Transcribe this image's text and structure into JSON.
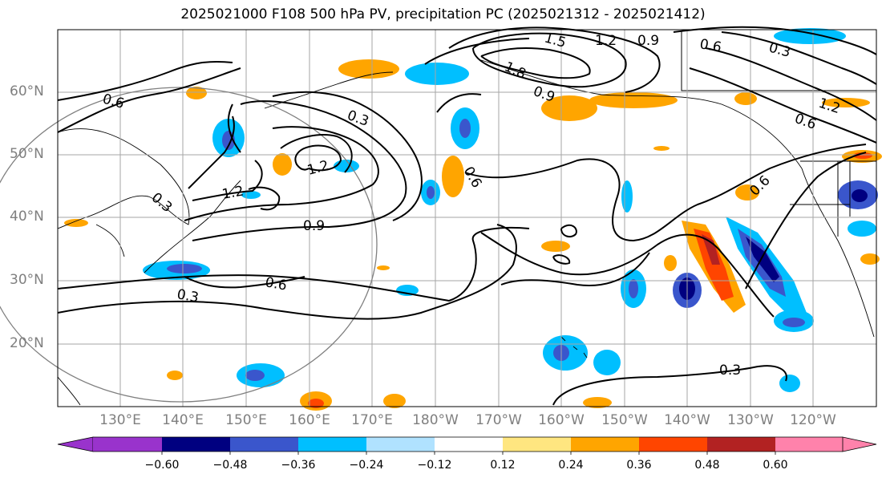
{
  "title": "2025021000 F108 500 hPa PV, precipitation PC (2025021312 - 2025021412)",
  "lat_labels": [
    "60°N",
    "50°N",
    "40°N",
    "30°N",
    "20°N"
  ],
  "lon_labels": [
    "130°E",
    "140°E",
    "150°E",
    "160°E",
    "170°E",
    "180°W",
    "170°W",
    "160°W",
    "150°W",
    "140°W",
    "130°W",
    "120°W"
  ],
  "contour_labels": [
    "1.5",
    "1.2",
    "0.9",
    "0.6",
    "0.3",
    "1.2",
    "0.6",
    "0.9",
    "1.8",
    "0.6",
    "0.3",
    "1.2",
    "1.2",
    "0.6",
    "0.3",
    "0.9",
    "0.6",
    "0.3",
    "0.6",
    "0.3"
  ],
  "colorbar": {
    "ticks": [
      "−0.60",
      "−0.48",
      "−0.36",
      "−0.24",
      "−0.12",
      "0.12",
      "0.24",
      "0.36",
      "0.48",
      "0.60"
    ],
    "colors": [
      "#9933cc",
      "#000080",
      "#3a56cc",
      "#00bfff",
      "#b0e2ff",
      "#ffffff",
      "#ffe680",
      "#ffa500",
      "#ff4500",
      "#b22222",
      "#ff82ab"
    ]
  }
}
